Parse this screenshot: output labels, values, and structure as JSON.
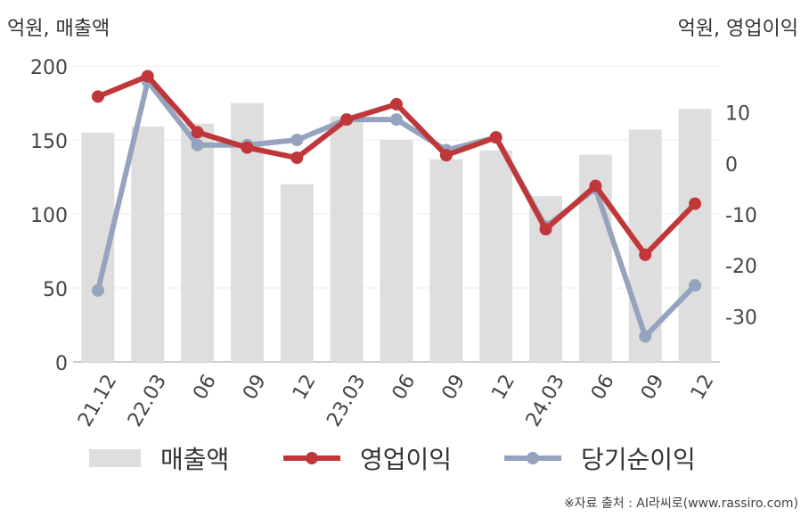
{
  "chart_data": {
    "type": "bar+line",
    "left_axis_label": "억원, 매출액",
    "right_axis_label": "억원, 영업이익",
    "categories": [
      "21.12",
      "22.03",
      "06",
      "09",
      "12",
      "23.03",
      "06",
      "09",
      "12",
      "24.03",
      "06",
      "09",
      "12"
    ],
    "left_axis": {
      "range": [
        0,
        200
      ],
      "ticks": [
        0,
        50,
        100,
        150,
        200
      ]
    },
    "right_axis": {
      "range": [
        -39,
        19
      ],
      "ticks": [
        -30,
        -20,
        -10,
        0,
        10
      ]
    },
    "grid": true,
    "legend_position": "bottom",
    "series": [
      {
        "name": "매출액",
        "type": "bar",
        "axis": "left",
        "color": "#dedede",
        "values": [
          155,
          159,
          161,
          175,
          120,
          166,
          150,
          137,
          143,
          112,
          140,
          157,
          171
        ]
      },
      {
        "name": "영업이익",
        "type": "line",
        "axis": "right",
        "color": "#c0373a",
        "values": [
          13,
          17,
          6,
          3,
          1,
          8.5,
          11.5,
          1.5,
          5,
          -13,
          -4.5,
          -18,
          -8
        ]
      },
      {
        "name": "당기순이익",
        "type": "line",
        "axis": "right",
        "color": "#95a3be",
        "values": [
          -25,
          16,
          3.5,
          3.5,
          4.5,
          8.5,
          8.5,
          2.5,
          5,
          -12.5,
          -5,
          -34,
          -24
        ]
      }
    ]
  },
  "source_text": "※자료 출처 : AI라씨로(www.rassiro.com)"
}
